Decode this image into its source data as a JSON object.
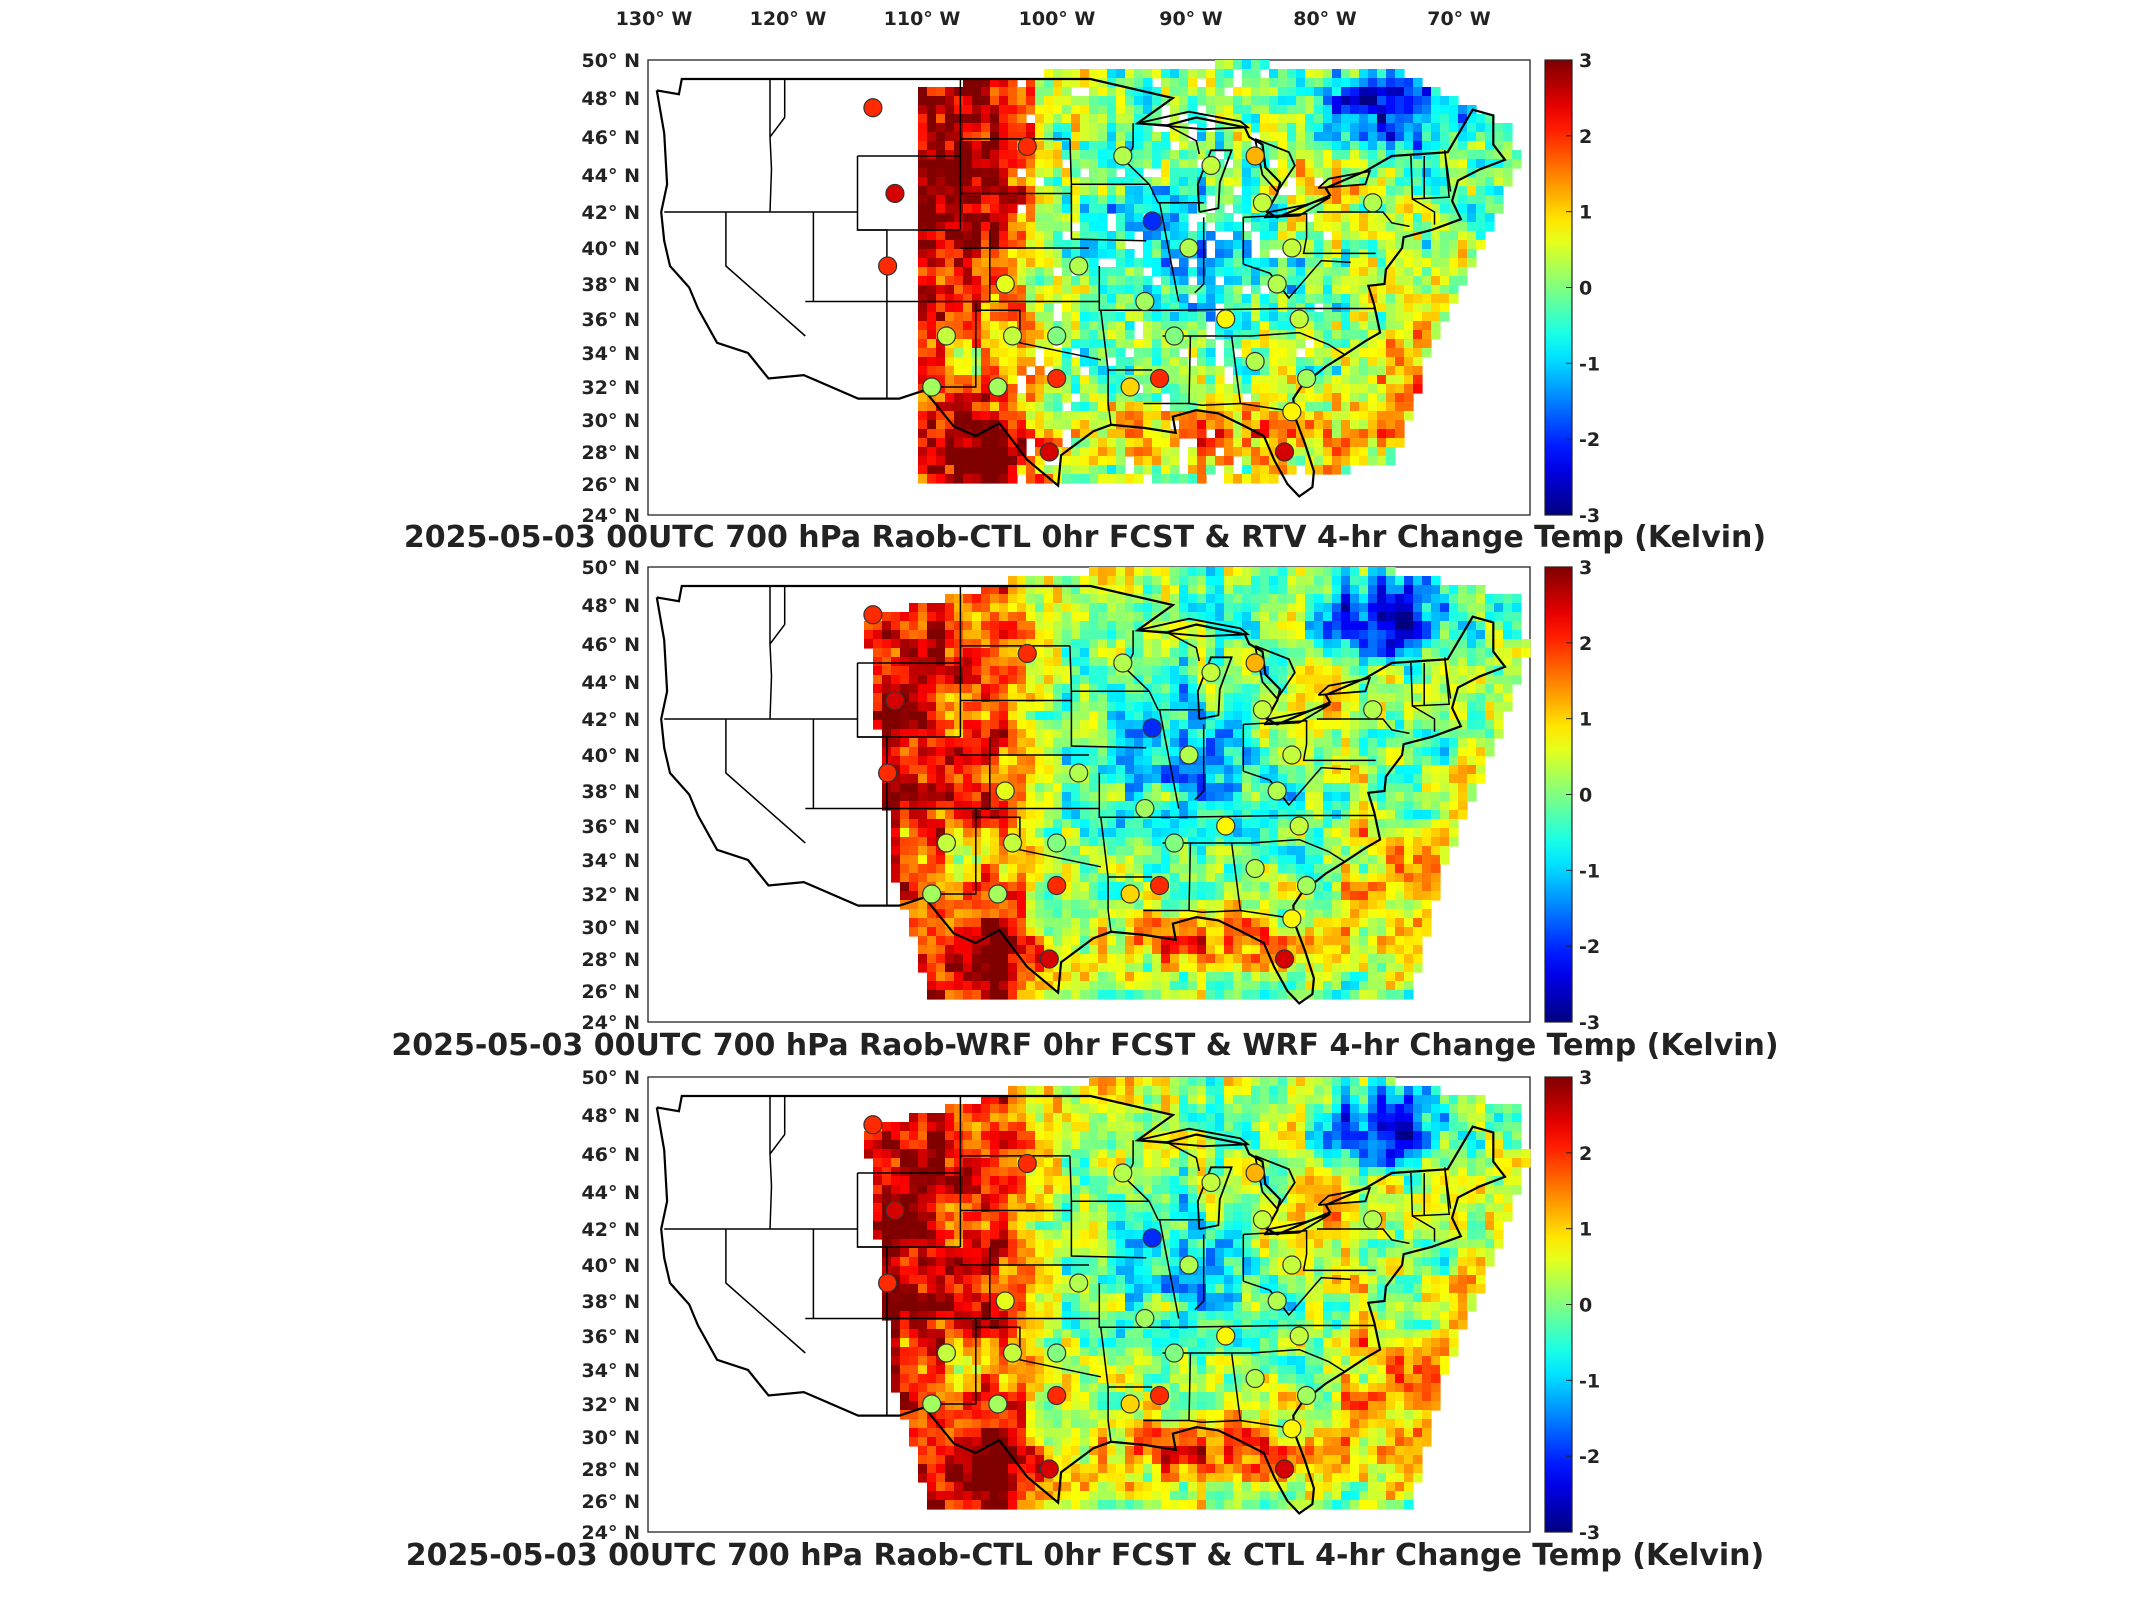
{
  "longitude_labels": [
    "130° W",
    "120° W",
    "110° W",
    "100° W",
    "90° W",
    "80° W",
    "70° W"
  ],
  "latitude_labels": [
    "50° N",
    "48° N",
    "46° N",
    "44° N",
    "42° N",
    "40° N",
    "38° N",
    "36° N",
    "34° N",
    "32° N",
    "30° N",
    "28° N",
    "26° N",
    "24° N"
  ],
  "colorbar": {
    "ticks": [
      "3",
      "2",
      "1",
      "0",
      "-1",
      "-2",
      "-3"
    ],
    "min": -3,
    "max": 3,
    "colormap": "jet"
  },
  "panels": [
    {
      "title": "2025-05-03 00UTC 700 hPa Raob-CTL 0hr FCST & RTV 4-hr Change Temp (Kelvin)",
      "field": "rtv"
    },
    {
      "title": "2025-05-03 00UTC 700 hPa Raob-WRF 0hr FCST & WRF 4-hr Change Temp (Kelvin)",
      "field": "wrf"
    },
    {
      "title": "2025-05-03 00UTC 700 hPa Raob-CTL 0hr FCST & CTL 4-hr Change Temp (Kelvin)",
      "field": "ctl"
    }
  ],
  "raob_stations": [
    {
      "lon": -110.0,
      "lat": 47.5,
      "value": 2.0
    },
    {
      "lon": -108.5,
      "lat": 43.0,
      "value": 2.5
    },
    {
      "lon": -109.0,
      "lat": 39.0,
      "value": 2.0
    },
    {
      "lon": -105.0,
      "lat": 35.0,
      "value": 0.4
    },
    {
      "lon": -106.0,
      "lat": 32.0,
      "value": 0.2
    },
    {
      "lon": -101.0,
      "lat": 38.0,
      "value": 0.6
    },
    {
      "lon": -100.5,
      "lat": 35.0,
      "value": 0.4
    },
    {
      "lon": -97.5,
      "lat": 35.0,
      "value": 0.0
    },
    {
      "lon": -97.5,
      "lat": 32.5,
      "value": 2.0
    },
    {
      "lon": -101.5,
      "lat": 32.0,
      "value": 0.2
    },
    {
      "lon": -96.0,
      "lat": 39.0,
      "value": 0.3
    },
    {
      "lon": -93.0,
      "lat": 45.0,
      "value": 0.3
    },
    {
      "lon": -91.5,
      "lat": 37.0,
      "value": 0.2
    },
    {
      "lon": -89.5,
      "lat": 35.0,
      "value": 0.0
    },
    {
      "lon": -91.0,
      "lat": 41.5,
      "value": -2.0
    },
    {
      "lon": -88.5,
      "lat": 40.0,
      "value": 0.3
    },
    {
      "lon": -87.0,
      "lat": 44.5,
      "value": 0.4
    },
    {
      "lon": -84.0,
      "lat": 45.0,
      "value": 1.2
    },
    {
      "lon": -83.5,
      "lat": 42.5,
      "value": 0.4
    },
    {
      "lon": -81.5,
      "lat": 40.0,
      "value": 0.4
    },
    {
      "lon": -82.5,
      "lat": 38.0,
      "value": 0.3
    },
    {
      "lon": -86.0,
      "lat": 36.0,
      "value": 0.8
    },
    {
      "lon": -81.0,
      "lat": 36.0,
      "value": 0.4
    },
    {
      "lon": -84.0,
      "lat": 33.5,
      "value": 0.3
    },
    {
      "lon": -80.5,
      "lat": 32.5,
      "value": 0.2
    },
    {
      "lon": -76.0,
      "lat": 42.5,
      "value": 0.3
    },
    {
      "lon": -90.5,
      "lat": 32.5,
      "value": 2.0
    },
    {
      "lon": -92.5,
      "lat": 32.0,
      "value": 1.0
    },
    {
      "lon": -98.0,
      "lat": 28.0,
      "value": 2.5
    },
    {
      "lon": -82.0,
      "lat": 28.0,
      "value": 2.5
    },
    {
      "lon": -81.5,
      "lat": 30.5,
      "value": 0.8
    },
    {
      "lon": -99.5,
      "lat": 45.5,
      "value": 2.0
    }
  ]
}
